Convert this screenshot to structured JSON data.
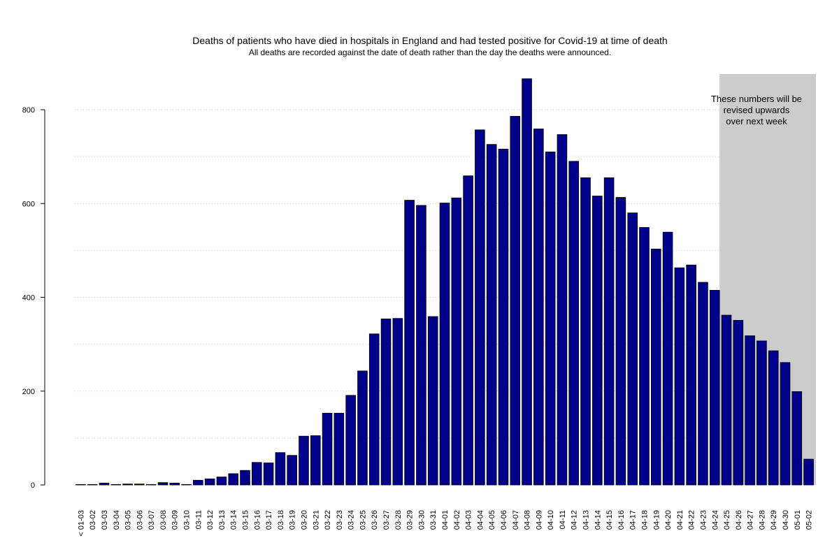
{
  "chart_data": {
    "type": "bar",
    "title": "Deaths of patients who have died in hospitals in England and had tested positive for Covid-19 at time of death",
    "subtitle": "All deaths are recorded against the date of death rather than the day the deaths were announced.",
    "categories": [
      "< 01-03",
      "03-02",
      "03-03",
      "03-04",
      "03-05",
      "03-06",
      "03-07",
      "03-08",
      "03-09",
      "03-10",
      "03-11",
      "03-12",
      "03-13",
      "03-14",
      "03-15",
      "03-16",
      "03-17",
      "03-18",
      "03-19",
      "03-20",
      "03-21",
      "03-22",
      "03-23",
      "03-24",
      "03-25",
      "03-26",
      "03-27",
      "03-28",
      "03-29",
      "03-30",
      "03-31",
      "04-01",
      "04-02",
      "04-03",
      "04-04",
      "04-05",
      "04-06",
      "04-07",
      "04-08",
      "04-09",
      "04-10",
      "04-11",
      "04-12",
      "04-13",
      "04-14",
      "04-15",
      "04-16",
      "04-17",
      "04-18",
      "04-19",
      "04-20",
      "04-21",
      "04-22",
      "04-23",
      "04-24",
      "04-25",
      "04-26",
      "04-27",
      "04-28",
      "04-29",
      "04-30",
      "05-01",
      "05-02"
    ],
    "values": [
      1,
      1,
      4,
      1,
      2,
      2,
      1,
      5,
      4,
      1,
      10,
      13,
      17,
      24,
      31,
      48,
      47,
      69,
      63,
      104,
      105,
      153,
      153,
      191,
      243,
      322,
      354,
      355,
      607,
      596,
      359,
      601,
      612,
      659,
      757,
      726,
      716,
      786,
      866,
      759,
      710,
      747,
      690,
      655,
      616,
      655,
      613,
      580,
      549,
      503,
      539,
      463,
      469,
      432,
      415,
      362,
      351,
      318,
      307,
      286,
      261,
      199,
      55
    ],
    "ylim": [
      0,
      875
    ],
    "yticks": [
      0,
      200,
      400,
      600,
      800
    ],
    "xlabel": "",
    "ylabel": "",
    "grid": true,
    "bar_color": "#00008b",
    "bar_border_color": "#000000",
    "shaded_region": {
      "from_category": "04-25",
      "to_category": "05-02",
      "color": "#cccccc",
      "annotation": [
        "These numbers will be",
        "revised upwards",
        "over next week"
      ]
    }
  }
}
